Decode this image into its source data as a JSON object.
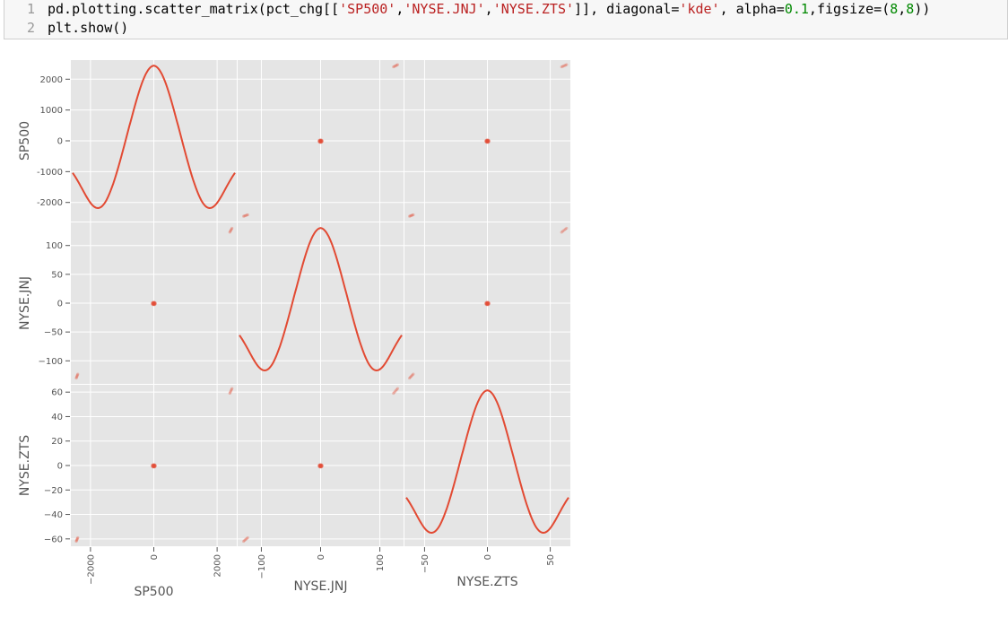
{
  "code": {
    "lines": [
      {
        "number": "1",
        "tokens": [
          {
            "t": "pd.plotting.scatter_matrix(pct_chg[[",
            "c": "plain"
          },
          {
            "t": "'SP500'",
            "c": "str"
          },
          {
            "t": ",",
            "c": "plain"
          },
          {
            "t": "'NYSE.JNJ'",
            "c": "str"
          },
          {
            "t": ",",
            "c": "plain"
          },
          {
            "t": "'NYSE.ZTS'",
            "c": "str"
          },
          {
            "t": "]], diagonal=",
            "c": "plain"
          },
          {
            "t": "'kde'",
            "c": "str"
          },
          {
            "t": ", alpha=",
            "c": "plain"
          },
          {
            "t": "0.1",
            "c": "num"
          },
          {
            "t": ",figsize=(",
            "c": "plain"
          },
          {
            "t": "8",
            "c": "num"
          },
          {
            "t": ",",
            "c": "plain"
          },
          {
            "t": "8",
            "c": "num"
          },
          {
            "t": "))",
            "c": "plain"
          }
        ]
      },
      {
        "number": "2",
        "tokens": [
          {
            "t": "plt.show()",
            "c": "plain"
          }
        ]
      }
    ]
  },
  "colors": {
    "panel_bg": "#e5e5e5",
    "grid": "#ffffff",
    "kde_line": "#e24a33",
    "point": "#e24a33",
    "tick_text": "#555555",
    "label_text": "#555555"
  },
  "chart_data": {
    "type": "scatter_matrix",
    "variables": [
      "SP500",
      "NYSE.JNJ",
      "NYSE.ZTS"
    ],
    "diagonal": "kde",
    "alpha": 0.1,
    "grid": true,
    "axes": [
      {
        "name": "SP500",
        "y_ticks": [
          2000,
          1000,
          0,
          -1000,
          -2000
        ],
        "y_tick_labels": [
          "2000",
          "1000",
          "0",
          "-1000",
          "-2000"
        ],
        "x_ticks": [
          -2000,
          0,
          2000
        ],
        "x_tick_labels": [
          "−2000",
          "0",
          "2000"
        ],
        "range": [
          -2620,
          2620
        ],
        "cluster_low": [
          -2450,
          -2400
        ],
        "cluster_high": [
          2400,
          2470
        ]
      },
      {
        "name": "NYSE.JNJ",
        "y_ticks": [
          100,
          50,
          0,
          -50,
          -100
        ],
        "y_tick_labels": [
          "100",
          "50",
          "0",
          "−50",
          "−100"
        ],
        "x_ticks": [
          -100,
          0,
          100
        ],
        "x_tick_labels": [
          "−100",
          "0",
          "100"
        ],
        "range": [
          -140,
          140
        ],
        "cluster_low": [
          -130,
          -123
        ],
        "cluster_high": [
          123,
          130
        ]
      },
      {
        "name": "NYSE.ZTS",
        "y_ticks": [
          60,
          40,
          20,
          0,
          -20,
          -40,
          -60
        ],
        "y_tick_labels": [
          "60",
          "40",
          "20",
          "0",
          "−20",
          "−40",
          "−60"
        ],
        "x_ticks": [
          -50,
          0,
          50
        ],
        "x_tick_labels": [
          "−50",
          "0",
          "50"
        ],
        "range": [
          -66,
          66
        ],
        "cluster_low": [
          -62,
          -59
        ],
        "cluster_high": [
          59,
          63
        ]
      }
    ]
  }
}
